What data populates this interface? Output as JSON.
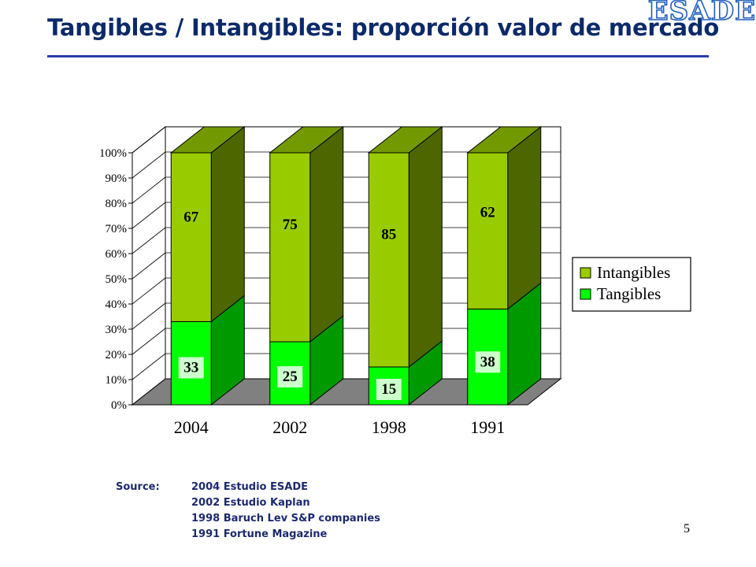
{
  "slide": {
    "title": "Tangibles / Intangibles: proporción valor de mercado",
    "logo_text": "ESADE",
    "page_number": "5"
  },
  "source": {
    "label": "Source:",
    "lines": [
      "2004 Estudio ESADE",
      "2002 Estudio Kaplan",
      "1998 Baruch Lev S&P companies",
      "1991 Fortune Magazine"
    ]
  },
  "chart_data": {
    "type": "bar",
    "stacked": true,
    "percent": true,
    "three_d": true,
    "categories": [
      "2004",
      "2002",
      "1998",
      "1991"
    ],
    "series": [
      {
        "name": "Tangibles",
        "values": [
          33,
          25,
          15,
          38
        ],
        "color": "#00ff00",
        "side_color": "#009900",
        "top_color": "#00cc00"
      },
      {
        "name": "Intangibles",
        "values": [
          67,
          75,
          85,
          62
        ],
        "color": "#99cc00",
        "side_color": "#4d6600",
        "top_color": "#739900"
      }
    ],
    "yticks": [
      "0%",
      "10%",
      "20%",
      "30%",
      "40%",
      "50%",
      "60%",
      "70%",
      "80%",
      "90%",
      "100%"
    ],
    "ylim": [
      0,
      100
    ],
    "grid": true,
    "legend": {
      "position": "right",
      "order": [
        "Intangibles",
        "Tangibles"
      ]
    },
    "floor_color": "#808080"
  }
}
